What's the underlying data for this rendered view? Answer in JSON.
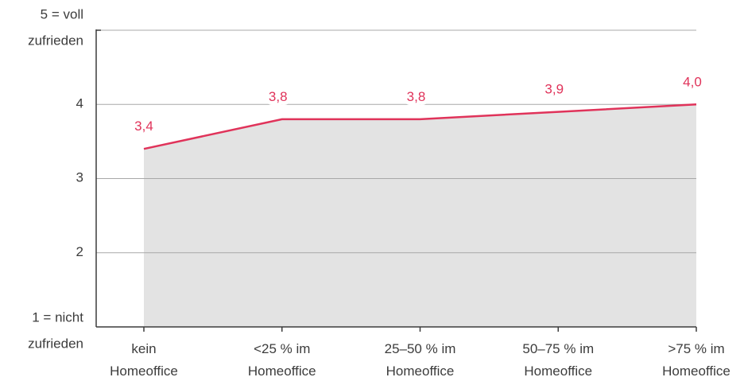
{
  "chart_data": {
    "type": "area",
    "categories": [
      "kein\nHomeoffice",
      "<25 % im\nHomeoffice",
      "25–50 % im\nHomeoffice",
      "50–75 % im\nHomeoffice",
      ">75 % im\nHomeoffice"
    ],
    "values": [
      3.4,
      3.8,
      3.8,
      3.9,
      4.0
    ],
    "value_labels": [
      "3,4",
      "3,8",
      "3,8",
      "3,9",
      "4,0"
    ],
    "color": "#e0335a",
    "fill": "#e3e3e3",
    "ylim": [
      1,
      5
    ],
    "yticks": [
      {
        "value": 1,
        "label": "1 = nicht\nzufrieden"
      },
      2,
      3,
      4,
      {
        "value": 5,
        "label": "5 = voll\nzufrieden"
      }
    ],
    "grid": true
  }
}
